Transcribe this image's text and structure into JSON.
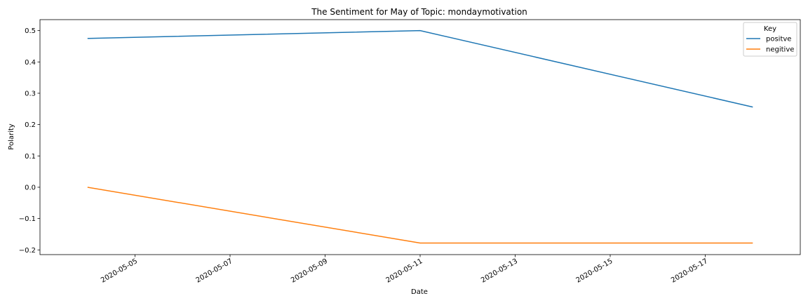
{
  "chart_data": {
    "type": "line",
    "title": "The Sentiment for May of Topic: mondaymotivation",
    "xlabel": "Date",
    "ylabel": "Polarity",
    "x": [
      "2020-05-04",
      "2020-05-11",
      "2020-05-18"
    ],
    "series": [
      {
        "name": "positve",
        "color": "#1f77b4",
        "values": [
          0.475,
          0.5,
          0.256
        ]
      },
      {
        "name": "negitive",
        "color": "#ff7f0e",
        "values": [
          0.0,
          -0.178,
          -0.178
        ]
      }
    ],
    "xlim": [
      "2020-05-03",
      "2020-05-19"
    ],
    "ylim": [
      -0.215,
      0.535
    ],
    "x_ticks": [
      "2020-05-05",
      "2020-05-07",
      "2020-05-09",
      "2020-05-11",
      "2020-05-13",
      "2020-05-15",
      "2020-05-17"
    ],
    "y_ticks": [
      -0.2,
      -0.1,
      0.0,
      0.1,
      0.2,
      0.3,
      0.4,
      0.5
    ],
    "y_tick_labels": [
      "−0.2",
      "−0.1",
      "0.0",
      "0.1",
      "0.2",
      "0.3",
      "0.4",
      "0.5"
    ],
    "grid": false,
    "legend": {
      "title": "Key",
      "position": "top-right"
    }
  }
}
